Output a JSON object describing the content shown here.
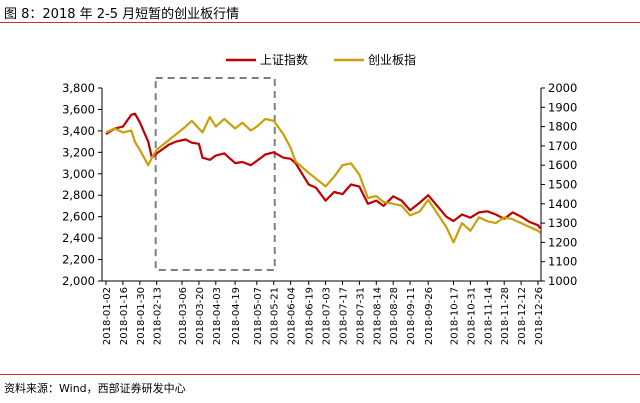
{
  "header": {
    "title": "图 8：2018 年 2-5 月短暂的创业板行情"
  },
  "footer": {
    "source": "资料来源：Wind，西部证券研发中心"
  },
  "chart_data": {
    "type": "line",
    "title": "图 8：2018 年 2-5 月短暂的创业板行情",
    "xlabel": "",
    "ylabel": "",
    "y_left": {
      "ylim": [
        2000,
        3800
      ],
      "ticks": [
        2000,
        2200,
        2400,
        2600,
        2800,
        3000,
        3200,
        3400,
        3600,
        3800
      ],
      "tick_labels": [
        "2,000",
        "2,200",
        "2,400",
        "2,600",
        "2,800",
        "3,000",
        "3,200",
        "3,400",
        "3,600",
        "3,800"
      ]
    },
    "y_right": {
      "ylim": [
        1000,
        2000
      ],
      "ticks": [
        1000,
        1100,
        1200,
        1300,
        1400,
        1500,
        1600,
        1700,
        1800,
        1900,
        2000
      ],
      "tick_labels": [
        "1000",
        "1100",
        "1200",
        "1300",
        "1400",
        "1500",
        "1600",
        "1700",
        "1800",
        "1900",
        "2000"
      ]
    },
    "x_tick_labels": [
      "2018-01-02",
      "2018-01-16",
      "2018-01-30",
      "2018-02-13",
      "2018-03-06",
      "2018-03-20",
      "2018-04-03",
      "2018-04-19",
      "2018-05-07",
      "2018-05-21",
      "2018-06-04",
      "2018-06-19",
      "2018-07-03",
      "2018-07-17",
      "2018-07-31",
      "2018-08-14",
      "2018-08-28",
      "2018-09-11",
      "2018-09-26",
      "2018-10-17",
      "2018-10-31",
      "2018-11-14",
      "2018-11-28",
      "2018-12-12",
      "2018-12-26"
    ],
    "legend_position": "top-center",
    "highlight_box": {
      "from": "2018-02-13",
      "to": "2018-05-21",
      "style": "dashed"
    },
    "series": [
      {
        "name": "上证指数",
        "axis": "left",
        "color": "#c00000",
        "dates": [
          "2018-01-02",
          "2018-01-09",
          "2018-01-16",
          "2018-01-23",
          "2018-01-26",
          "2018-01-30",
          "2018-02-06",
          "2018-02-09",
          "2018-02-13",
          "2018-02-23",
          "2018-03-01",
          "2018-03-09",
          "2018-03-14",
          "2018-03-20",
          "2018-03-23",
          "2018-03-29",
          "2018-04-03",
          "2018-04-10",
          "2018-04-19",
          "2018-04-25",
          "2018-05-02",
          "2018-05-07",
          "2018-05-14",
          "2018-05-21",
          "2018-05-29",
          "2018-06-04",
          "2018-06-08",
          "2018-06-19",
          "2018-06-25",
          "2018-07-03",
          "2018-07-10",
          "2018-07-17",
          "2018-07-24",
          "2018-07-31",
          "2018-08-07",
          "2018-08-14",
          "2018-08-20",
          "2018-08-28",
          "2018-09-04",
          "2018-09-11",
          "2018-09-19",
          "2018-09-26",
          "2018-10-11",
          "2018-10-17",
          "2018-10-24",
          "2018-10-31",
          "2018-11-07",
          "2018-11-14",
          "2018-11-21",
          "2018-11-28",
          "2018-12-05",
          "2018-12-12",
          "2018-12-19",
          "2018-12-26",
          "2018-12-28"
        ],
        "values": [
          3370,
          3420,
          3440,
          3550,
          3560,
          3480,
          3300,
          3150,
          3190,
          3270,
          3300,
          3320,
          3290,
          3280,
          3150,
          3130,
          3170,
          3190,
          3100,
          3110,
          3080,
          3120,
          3180,
          3200,
          3150,
          3140,
          3100,
          2900,
          2870,
          2750,
          2830,
          2810,
          2900,
          2880,
          2720,
          2750,
          2700,
          2790,
          2750,
          2660,
          2730,
          2800,
          2600,
          2560,
          2620,
          2590,
          2640,
          2650,
          2620,
          2580,
          2640,
          2600,
          2550,
          2520,
          2490
        ]
      },
      {
        "name": "创业板指",
        "axis": "right",
        "color": "#c9a00c",
        "dates": [
          "2018-01-02",
          "2018-01-09",
          "2018-01-16",
          "2018-01-23",
          "2018-01-26",
          "2018-01-30",
          "2018-02-06",
          "2018-02-09",
          "2018-02-13",
          "2018-02-23",
          "2018-03-01",
          "2018-03-09",
          "2018-03-14",
          "2018-03-20",
          "2018-03-23",
          "2018-03-29",
          "2018-04-03",
          "2018-04-10",
          "2018-04-19",
          "2018-04-25",
          "2018-05-02",
          "2018-05-07",
          "2018-05-14",
          "2018-05-21",
          "2018-05-29",
          "2018-06-04",
          "2018-06-08",
          "2018-06-19",
          "2018-06-25",
          "2018-07-03",
          "2018-07-10",
          "2018-07-17",
          "2018-07-24",
          "2018-07-31",
          "2018-08-07",
          "2018-08-14",
          "2018-08-20",
          "2018-08-28",
          "2018-09-04",
          "2018-09-11",
          "2018-09-19",
          "2018-09-26",
          "2018-10-11",
          "2018-10-17",
          "2018-10-24",
          "2018-10-31",
          "2018-11-07",
          "2018-11-14",
          "2018-11-21",
          "2018-11-28",
          "2018-12-05",
          "2018-12-12",
          "2018-12-19",
          "2018-12-26",
          "2018-12-28"
        ],
        "values": [
          1770,
          1790,
          1770,
          1780,
          1720,
          1680,
          1600,
          1640,
          1680,
          1730,
          1760,
          1800,
          1830,
          1790,
          1770,
          1850,
          1800,
          1840,
          1790,
          1820,
          1780,
          1800,
          1840,
          1830,
          1760,
          1690,
          1620,
          1560,
          1530,
          1490,
          1540,
          1600,
          1610,
          1550,
          1430,
          1440,
          1410,
          1400,
          1390,
          1340,
          1360,
          1420,
          1280,
          1200,
          1300,
          1260,
          1330,
          1310,
          1300,
          1330,
          1320,
          1300,
          1280,
          1260,
          1250
        ]
      }
    ]
  }
}
